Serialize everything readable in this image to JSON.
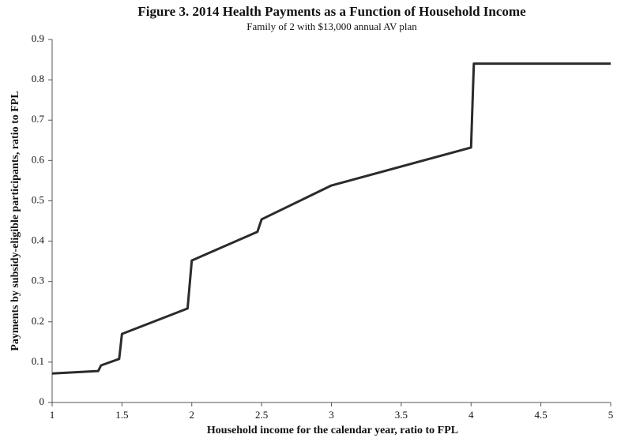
{
  "chart_data": {
    "type": "line",
    "title": "Figure 3.  2014 Health Payments as a Function of Household Income",
    "subtitle": "Family of 2 with $13,000 annual AV plan",
    "x_label": "Household income for the calendar year, ratio to FPL",
    "y_label": "Payments by subsidy-eligible participants, ratio to FPL",
    "x": [
      1,
      1.33,
      1.35,
      1.48,
      1.5,
      1.97,
      2.0,
      2.47,
      2.5,
      3,
      4,
      4.02,
      5
    ],
    "values": [
      0.072,
      0.078,
      0.092,
      0.108,
      0.17,
      0.233,
      0.352,
      0.423,
      0.454,
      0.538,
      0.632,
      0.84,
      0.84
    ],
    "color": "#2b2b2b",
    "xlim": [
      1,
      5
    ],
    "xticks": [
      1,
      1.5,
      2,
      2.5,
      3,
      3.5,
      4,
      4.5,
      5
    ],
    "ylim": [
      0,
      0.9
    ],
    "yticks": [
      0,
      0.1,
      0.2,
      0.3,
      0.4,
      0.5,
      0.6,
      0.7,
      0.8,
      0.9
    ],
    "grid": false
  }
}
